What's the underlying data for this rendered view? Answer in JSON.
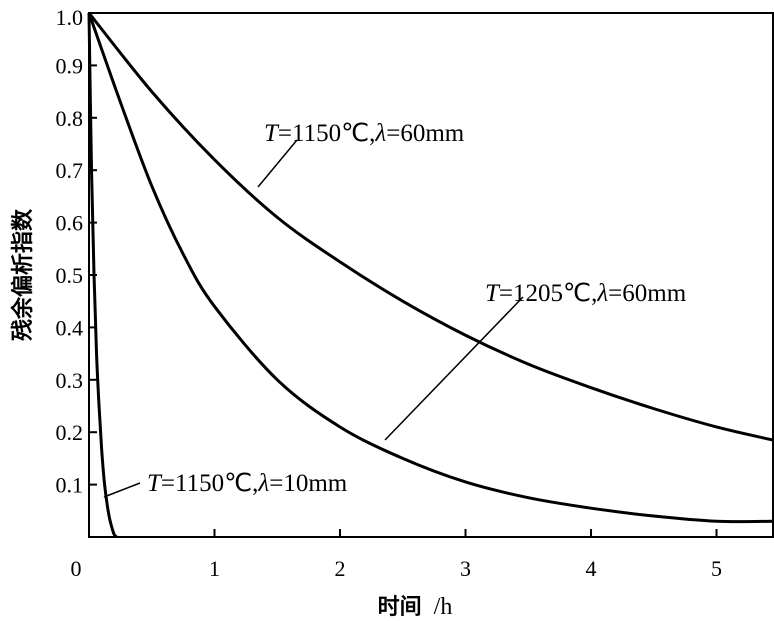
{
  "chart_data": {
    "type": "line",
    "xlabel": "时间",
    "xunit": "/h",
    "ylabel": "残余偏析指数",
    "xlim": [
      0,
      5.45
    ],
    "ylim": [
      0,
      1.0
    ],
    "x_ticks": [
      "0",
      "1",
      "2",
      "3",
      "4",
      "5"
    ],
    "y_ticks": [
      "0.1",
      "0.2",
      "0.3",
      "0.4",
      "0.5",
      "0.6",
      "0.7",
      "0.8",
      "0.9",
      "1.0"
    ],
    "grid": false,
    "series": [
      {
        "name": "T=1150℃,λ=60mm",
        "x": [
          0,
          0.5,
          1,
          1.5,
          2,
          2.5,
          3,
          3.5,
          4,
          4.5,
          5,
          5.45
        ],
        "y": [
          1.0,
          0.85,
          0.72,
          0.61,
          0.525,
          0.45,
          0.385,
          0.33,
          0.285,
          0.245,
          0.21,
          0.185
        ]
      },
      {
        "name": "T=1205℃,λ=60mm",
        "x": [
          0,
          0.25,
          0.5,
          0.75,
          1,
          1.5,
          2,
          2.5,
          3,
          3.5,
          4,
          4.5,
          5,
          5.45
        ],
        "y": [
          1.0,
          0.83,
          0.67,
          0.54,
          0.44,
          0.3,
          0.21,
          0.15,
          0.105,
          0.075,
          0.055,
          0.04,
          0.03,
          0.03
        ]
      },
      {
        "name": "T=1150℃,λ=10mm",
        "x": [
          0,
          0.02,
          0.04,
          0.06,
          0.08,
          0.1,
          0.12,
          0.14,
          0.16,
          0.18,
          0.2,
          0.22
        ],
        "y": [
          1.0,
          0.7,
          0.5,
          0.35,
          0.25,
          0.17,
          0.11,
          0.07,
          0.04,
          0.02,
          0.005,
          0.0
        ]
      }
    ],
    "annotations": [
      {
        "series": 0,
        "prefix": "T",
        "middle": "=1150℃,",
        "sym": "λ",
        "suffix": "=60mm"
      },
      {
        "series": 1,
        "prefix": "T",
        "middle": "=1205℃,",
        "sym": "λ",
        "suffix": "=60mm"
      },
      {
        "series": 2,
        "prefix": "T",
        "middle": "=1150℃,",
        "sym": "λ",
        "suffix": "=10mm"
      }
    ]
  }
}
